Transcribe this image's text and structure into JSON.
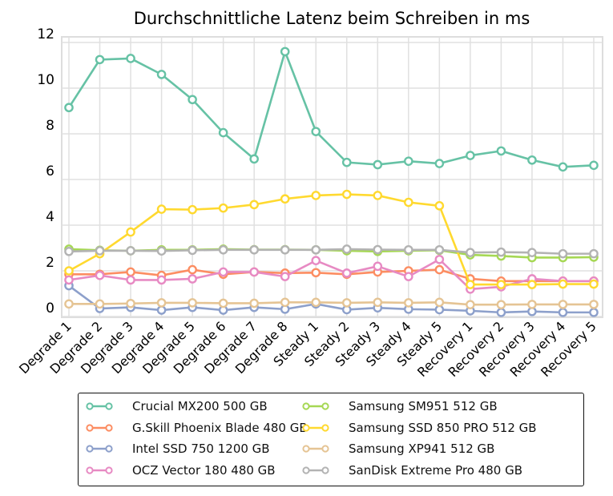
{
  "chart_data": {
    "type": "line",
    "title": "Durchschnittliche Latenz beim Schreiben in ms",
    "xlabel": "",
    "ylabel": "",
    "ylim": [
      0,
      12
    ],
    "yticks": [
      0,
      2,
      4,
      6,
      8,
      10,
      12
    ],
    "ytick_labels": [
      "0",
      "2",
      "4",
      "6",
      "8",
      "10",
      "12"
    ],
    "grid": true,
    "legend_position": "bottom",
    "categories": [
      "Degrade 1",
      "Degrade 2",
      "Degrade 3",
      "Degrade 4",
      "Degrade 5",
      "Degrade 6",
      "Degrade 7",
      "Degrade 8",
      "Steady 1",
      "Steady 2",
      "Steady 3",
      "Steady 4",
      "Steady 5",
      "Recovery 1",
      "Recovery 2",
      "Recovery 3",
      "Recovery 4",
      "Recovery 5"
    ],
    "series": [
      {
        "name": "Crucial MX200 500 GB",
        "color": "#66c2a5",
        "values": [
          9.15,
          11.25,
          11.3,
          10.6,
          9.5,
          8.05,
          6.9,
          11.6,
          8.1,
          6.75,
          6.65,
          6.8,
          6.7,
          7.05,
          7.25,
          6.85,
          6.55,
          6.62
        ]
      },
      {
        "name": "G.Skill Phoenix Blade 480 GB",
        "color": "#fc8d62",
        "values": [
          1.85,
          1.85,
          1.95,
          1.8,
          2.05,
          1.85,
          1.95,
          1.9,
          1.92,
          1.85,
          1.95,
          2.0,
          2.05,
          1.65,
          1.55,
          1.55,
          1.55,
          1.55
        ]
      },
      {
        "name": "Intel SSD 750 1200 GB",
        "color": "#8da0cb",
        "values": [
          1.35,
          0.35,
          0.4,
          0.28,
          0.4,
          0.28,
          0.4,
          0.32,
          0.55,
          0.3,
          0.38,
          0.32,
          0.3,
          0.25,
          0.18,
          0.22,
          0.18,
          0.18
        ]
      },
      {
        "name": "OCZ Vector 180 480 GB",
        "color": "#e78ac3",
        "values": [
          1.6,
          1.8,
          1.6,
          1.6,
          1.65,
          1.95,
          1.95,
          1.75,
          2.45,
          1.9,
          2.2,
          1.75,
          2.5,
          1.2,
          1.3,
          1.65,
          1.55,
          1.55
        ]
      },
      {
        "name": "Samsung SM951 512 GB",
        "color": "#a6d854",
        "values": [
          2.95,
          2.9,
          2.88,
          2.92,
          2.92,
          2.95,
          2.93,
          2.93,
          2.92,
          2.88,
          2.85,
          2.88,
          2.9,
          2.7,
          2.65,
          2.58,
          2.58,
          2.6
        ]
      },
      {
        "name": "Samsung SSD 850 PRO 512 GB",
        "color": "#ffd92f",
        "values": [
          2.0,
          2.75,
          3.7,
          4.7,
          4.68,
          4.75,
          4.9,
          5.15,
          5.3,
          5.35,
          5.3,
          5.0,
          4.85,
          1.4,
          1.4,
          1.4,
          1.42,
          1.42
        ]
      },
      {
        "name": "Samsung XP941 512 GB",
        "color": "#e5c494",
        "values": [
          0.55,
          0.55,
          0.57,
          0.6,
          0.6,
          0.58,
          0.58,
          0.62,
          0.62,
          0.6,
          0.62,
          0.6,
          0.62,
          0.52,
          0.52,
          0.53,
          0.53,
          0.53
        ]
      },
      {
        "name": "SanDisk Extreme Pro 480 GB",
        "color": "#b3b3b3",
        "values": [
          2.85,
          2.88,
          2.88,
          2.87,
          2.9,
          2.92,
          2.92,
          2.92,
          2.92,
          2.95,
          2.93,
          2.92,
          2.92,
          2.8,
          2.82,
          2.8,
          2.75,
          2.75
        ]
      }
    ]
  }
}
